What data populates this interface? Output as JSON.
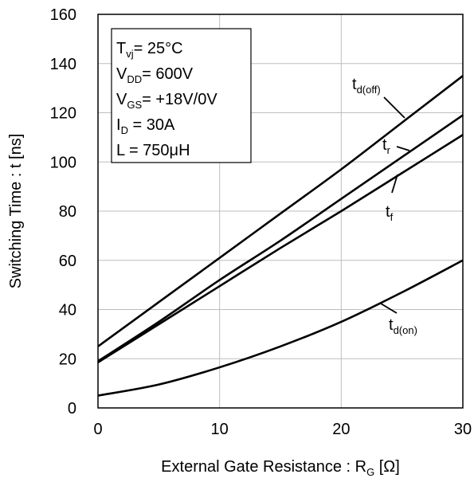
{
  "chart_data": {
    "type": "line",
    "title": "",
    "xlabel": {
      "main": "External Gate Resistance : R",
      "sub": "G",
      "unit": " [Ω]"
    },
    "ylabel": "Switching Time : t [ns]",
    "xlim": [
      0,
      30
    ],
    "ylim": [
      0,
      160
    ],
    "xticks": [
      0,
      10,
      20,
      30
    ],
    "yticks": [
      0,
      20,
      40,
      60,
      80,
      100,
      120,
      140,
      160
    ],
    "grid": true,
    "x": [
      0,
      5,
      10,
      15,
      20,
      25,
      30
    ],
    "series": [
      {
        "name": "td(off)",
        "label_main": "t",
        "label_sub": "d(off)",
        "values": [
          25,
          43,
          61,
          79,
          97,
          116,
          135
        ]
      },
      {
        "name": "tr",
        "label_main": "t",
        "label_sub": "r",
        "values": [
          19,
          35,
          52,
          68,
          85,
          102,
          119
        ]
      },
      {
        "name": "tf",
        "label_main": "t",
        "label_sub": "f",
        "values": [
          18.5,
          34,
          49.5,
          65,
          80,
          95.5,
          111
        ]
      },
      {
        "name": "td(on)",
        "label_main": "t",
        "label_sub": "d(on)",
        "values": [
          5,
          9.5,
          16.5,
          25,
          35,
          47,
          60
        ]
      }
    ],
    "conditions": [
      {
        "main": "T",
        "sub": "vj",
        "value": "=    25°C"
      },
      {
        "main": "V",
        "sub": "DD",
        "value": "= 600V"
      },
      {
        "main": "V",
        "sub": "GS",
        "value": "= +18V/0V"
      },
      {
        "main": "I",
        "sub": "D",
        "value": " =    30A"
      },
      {
        "main": "L",
        "sub": "",
        "value": " =    750μH"
      }
    ]
  }
}
